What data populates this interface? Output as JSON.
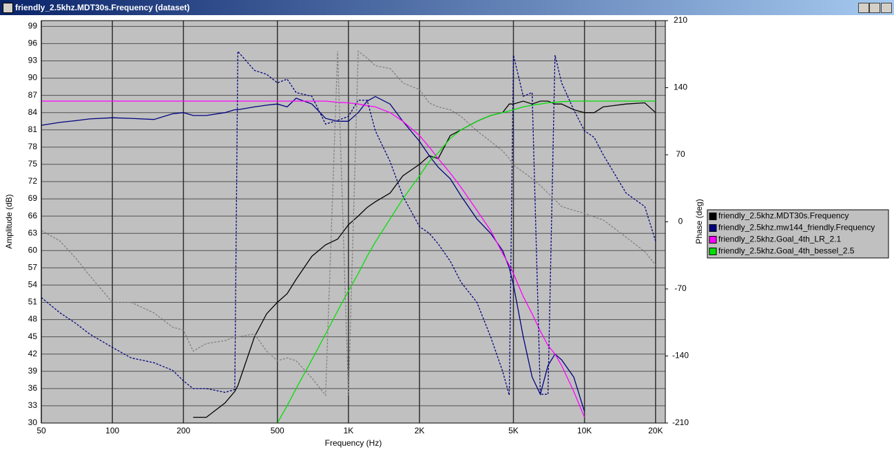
{
  "window": {
    "title": "friendly_2.5khz.MDT30s.Frequency (dataset)"
  },
  "chart_data": {
    "type": "line",
    "xlabel": "Frequency (Hz)",
    "ylabel": "Amplitude (dB)",
    "y2label": "Phase (deg)",
    "xscale": "log",
    "grid": true,
    "xlim": [
      50,
      22000
    ],
    "ylim": [
      30,
      100
    ],
    "y2lim": [
      -210,
      210
    ],
    "xticks": [
      50,
      100,
      200,
      500,
      {
        "value": 1000,
        "label": "1K"
      },
      {
        "value": 2000,
        "label": "2K"
      },
      {
        "value": 5000,
        "label": "5K"
      },
      {
        "value": 10000,
        "label": "10K"
      },
      {
        "value": 20000,
        "label": "20K"
      }
    ],
    "yticks": [
      30,
      33,
      36,
      39,
      42,
      45,
      48,
      51,
      54,
      57,
      60,
      63,
      66,
      69,
      72,
      75,
      78,
      81,
      84,
      87,
      90,
      93,
      96,
      99
    ],
    "y2ticks": [
      210,
      140,
      70,
      0,
      -70,
      -140,
      -210
    ],
    "x": [
      50,
      60,
      70,
      80,
      100,
      120,
      150,
      180,
      200,
      220,
      250,
      300,
      330,
      340,
      400,
      450,
      500,
      550,
      600,
      700,
      800,
      900,
      1000,
      1100,
      1200,
      1300,
      1500,
      1700,
      2000,
      2200,
      2400,
      2700,
      3000,
      3500,
      4000,
      4500,
      4800,
      5000,
      5500,
      6000,
      6500,
      7000,
      7500,
      8000,
      9000,
      10000,
      11000,
      12000,
      15000,
      18000,
      20000
    ],
    "series": [
      {
        "name": "friendly_2.5khz.MDT30s.Frequency",
        "color": "#000000",
        "values": [
          null,
          null,
          null,
          null,
          null,
          null,
          null,
          null,
          null,
          31,
          31,
          33.5,
          35.5,
          36.5,
          45,
          49,
          51,
          52.5,
          55,
          59,
          61,
          62,
          64.5,
          66,
          67.5,
          68.5,
          70,
          73,
          75,
          76.5,
          76,
          80,
          81,
          82.5,
          83.5,
          84,
          85.5,
          85.5,
          86,
          85.5,
          86,
          86,
          85.5,
          85.5,
          84.5,
          84,
          84,
          85,
          85.5,
          85.7,
          84
        ]
      },
      {
        "name": "friendly_2.5khz.mw144_friendly.Frequency",
        "color": "#000080",
        "values": [
          81.8,
          82.3,
          82.6,
          82.9,
          83.1,
          83,
          82.8,
          83.8,
          84,
          83.5,
          83.5,
          84,
          84.5,
          84.5,
          85,
          85.3,
          85.5,
          85,
          86.5,
          85.5,
          83,
          82.5,
          82.5,
          84,
          86,
          86.8,
          85.5,
          82.5,
          79,
          76.5,
          74.5,
          72.5,
          69.5,
          65.5,
          63,
          60,
          57,
          54,
          45,
          38,
          35,
          40,
          42,
          41,
          38,
          32,
          null,
          null,
          null,
          null,
          null
        ]
      },
      {
        "name": "friendly_2.5khz.Goal_4th_LR_2.1",
        "color": "#ff00ff",
        "values": [
          86,
          86,
          86,
          86,
          86,
          86,
          86,
          86,
          86,
          86,
          86,
          86,
          86,
          86,
          86,
          86,
          86,
          86,
          86,
          86,
          86,
          85.8,
          85.7,
          85.5,
          85.2,
          85,
          84,
          82.5,
          80,
          78,
          76,
          73.5,
          71,
          67,
          63.5,
          59.5,
          57.5,
          56,
          52,
          49,
          46,
          43.5,
          42,
          40,
          35.5,
          31,
          null,
          null,
          null,
          null,
          null
        ]
      },
      {
        "name": "friendly_2.5khz.Goal_4th_bessel_2.5",
        "color": "#00e000",
        "values": [
          null,
          null,
          null,
          null,
          null,
          null,
          null,
          null,
          null,
          null,
          null,
          null,
          null,
          null,
          null,
          null,
          30,
          33,
          36,
          41,
          45.5,
          49.5,
          53,
          56,
          59,
          61.5,
          65.5,
          69,
          73,
          75.5,
          77,
          79.5,
          81,
          82.5,
          83.5,
          84,
          84.3,
          84.5,
          85,
          85.3,
          85.5,
          85.7,
          85.8,
          85.9,
          86,
          86,
          86,
          86,
          86,
          86,
          86
        ]
      },
      {
        "axis": "y2",
        "color": "#000080",
        "linestyle": "dashed",
        "values": [
          -79,
          -95,
          -106,
          -117,
          -131,
          -142,
          -147,
          -155,
          -166,
          -174,
          -174,
          -178,
          -175,
          178,
          158,
          154,
          145,
          149,
          135,
          131,
          102,
          106,
          110,
          127,
          127,
          95,
          63,
          27,
          -5,
          -12,
          -23,
          -41,
          -63,
          -84,
          -120,
          -156,
          -181,
          174,
          131,
          135,
          -180,
          -180,
          174,
          145,
          117,
          95,
          88,
          70,
          30,
          16,
          -20
        ]
      },
      {
        "axis": "y2",
        "color": "#808080",
        "linestyle": "dashed",
        "values": [
          -9,
          -20,
          -38,
          -56,
          -84,
          -84,
          -95,
          -110,
          -113,
          -135,
          -127,
          -124,
          -120,
          -120,
          -117,
          -135,
          -145,
          -142,
          -145,
          -163,
          -181,
          178,
          -181,
          178,
          171,
          163,
          160,
          145,
          138,
          124,
          120,
          117,
          110,
          95,
          84,
          74,
          66,
          59,
          52,
          45,
          38,
          30,
          23,
          16,
          12,
          9,
          5,
          2,
          -16,
          -31,
          -45
        ]
      }
    ]
  }
}
